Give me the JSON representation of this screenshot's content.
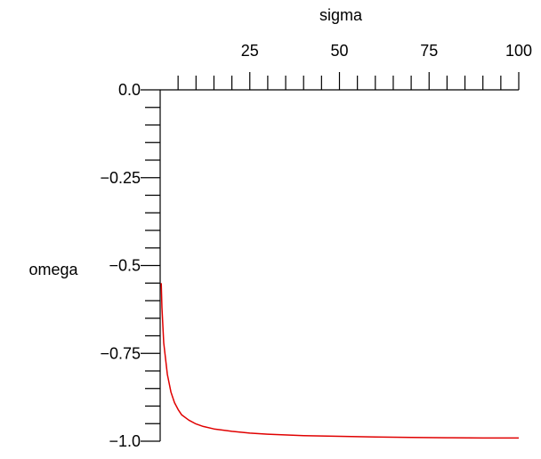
{
  "chart_data": {
    "type": "line",
    "title": "",
    "xlabel": "sigma",
    "ylabel": "omega",
    "xlim": [
      0,
      100
    ],
    "ylim": [
      -1.0,
      0.0
    ],
    "x_axis_position": "top",
    "y_axis_position": "left",
    "x_ticks": [
      25,
      50,
      75,
      100
    ],
    "x_tick_labels": [
      "25",
      "50",
      "75",
      "100"
    ],
    "x_minor_step": 5,
    "y_ticks": [
      0.0,
      -0.25,
      -0.5,
      -0.75,
      -1.0
    ],
    "y_tick_labels": [
      "0.0",
      "−0.25",
      "−0.5",
      "−0.75",
      "−1.0"
    ],
    "y_minor_step": 0.05,
    "grid": false,
    "legend": "none",
    "series": [
      {
        "color": "#e00000",
        "x": [
          0.3,
          0.5,
          1,
          2,
          3,
          4,
          5,
          6,
          8,
          10,
          12,
          15,
          20,
          25,
          30,
          40,
          50,
          60,
          70,
          80,
          90,
          100
        ],
        "y": [
          -0.55,
          -0.62,
          -0.72,
          -0.81,
          -0.86,
          -0.89,
          -0.91,
          -0.925,
          -0.94,
          -0.951,
          -0.958,
          -0.965,
          -0.972,
          -0.977,
          -0.98,
          -0.984,
          -0.986,
          -0.988,
          -0.989,
          -0.99,
          -0.991,
          -0.991
        ]
      }
    ]
  }
}
